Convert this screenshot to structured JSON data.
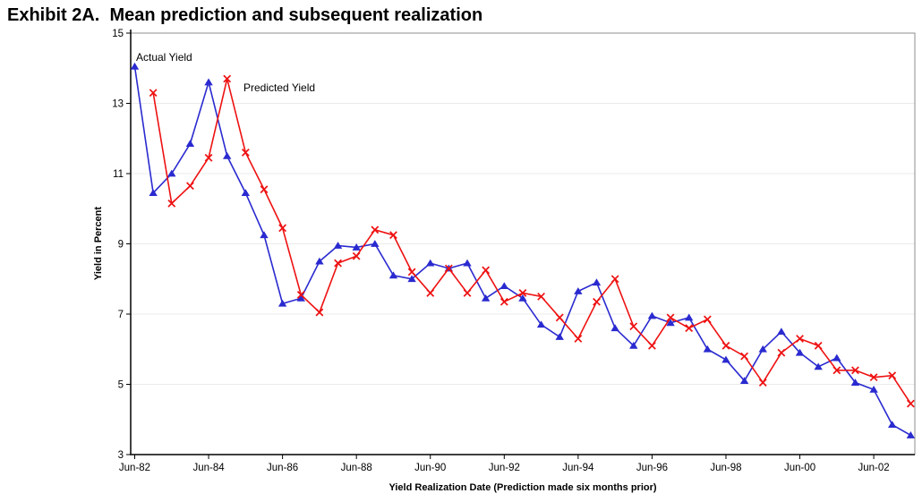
{
  "header": {
    "title": "Exhibit 2A.  Mean prediction and subsequent realization"
  },
  "chart_data": {
    "type": "line",
    "title": "Exhibit 2A.  Mean prediction and subsequent realization",
    "xlabel": "Yield Realization Date (Prediction made six months prior)",
    "ylabel": "Yield in Percent",
    "ylim": [
      3,
      15
    ],
    "yticks": [
      15,
      13,
      11,
      9,
      7,
      5,
      3
    ],
    "xtick_labels": [
      "Jun-82",
      "Jun-84",
      "Jun-86",
      "Jun-88",
      "Jun-90",
      "Jun-92",
      "Jun-94",
      "Jun-96",
      "Jun-98",
      "Jun-00",
      "Jun-02"
    ],
    "grid": "horizontal-very-light",
    "legend_position": "inline-labels-near-series",
    "categories": [
      "Jun-82",
      "Dec-82",
      "Jun-83",
      "Dec-83",
      "Jun-84",
      "Dec-84",
      "Jun-85",
      "Dec-85",
      "Jun-86",
      "Dec-86",
      "Jun-87",
      "Dec-87",
      "Jun-88",
      "Dec-88",
      "Jun-89",
      "Dec-89",
      "Jun-90",
      "Dec-90",
      "Jun-91",
      "Dec-91",
      "Jun-92",
      "Dec-92",
      "Jun-93",
      "Dec-93",
      "Jun-94",
      "Dec-94",
      "Jun-95",
      "Dec-95",
      "Jun-96",
      "Dec-96",
      "Jun-97",
      "Dec-97",
      "Jun-98",
      "Dec-98",
      "Jun-99",
      "Dec-99",
      "Jun-00",
      "Dec-00",
      "Jun-01",
      "Dec-01",
      "Jun-02",
      "Dec-02",
      "Jun-03"
    ],
    "series": [
      {
        "name": "Actual Yield",
        "color": "#2a2ad0",
        "marker": "triangle",
        "values": [
          14.05,
          10.45,
          11.0,
          11.85,
          13.6,
          11.5,
          10.45,
          9.25,
          7.3,
          7.45,
          8.5,
          8.95,
          8.9,
          9.0,
          8.1,
          8.0,
          8.45,
          8.3,
          8.45,
          7.45,
          7.8,
          7.45,
          6.7,
          6.35,
          7.65,
          7.9,
          6.6,
          6.1,
          6.95,
          6.75,
          6.9,
          6.0,
          5.7,
          5.1,
          6.0,
          6.5,
          5.9,
          5.5,
          5.75,
          5.05,
          4.85,
          3.85,
          3.55
        ]
      },
      {
        "name": "Predicted Yield",
        "color": "#ee1111",
        "marker": "x",
        "values": [
          null,
          13.3,
          10.15,
          10.65,
          11.45,
          13.7,
          11.6,
          10.55,
          9.45,
          7.55,
          7.05,
          8.45,
          8.65,
          9.4,
          9.25,
          8.2,
          7.6,
          8.3,
          7.6,
          8.25,
          7.35,
          7.6,
          7.5,
          6.9,
          6.3,
          7.35,
          8.0,
          6.65,
          6.1,
          6.9,
          6.6,
          6.85,
          6.1,
          5.8,
          5.05,
          5.9,
          6.3,
          6.1,
          5.4,
          5.4,
          5.2,
          5.25,
          4.45
        ]
      }
    ],
    "annotations": [
      {
        "text": "Actual Yield"
      },
      {
        "text": "Predicted Yield"
      }
    ],
    "colors": {
      "grid": "#ebebeb",
      "axis": "#000000",
      "frame": "#8c8c8c"
    }
  }
}
